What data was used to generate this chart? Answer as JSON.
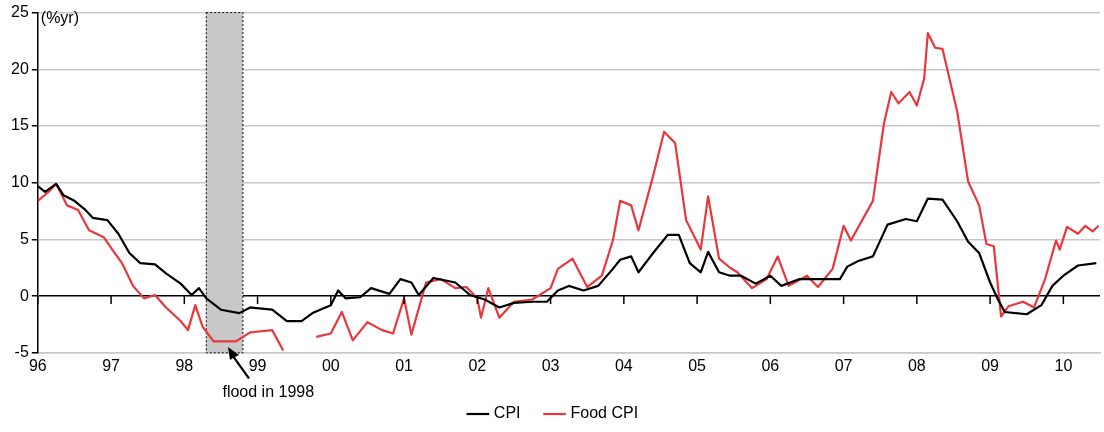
{
  "chart_data": {
    "type": "line",
    "ylabel": "(%yr)",
    "xlim": [
      1996,
      2010.5
    ],
    "xticks": [
      {
        "value": 1996,
        "label": "96"
      },
      {
        "value": 1997,
        "label": "97"
      },
      {
        "value": 1998,
        "label": "98"
      },
      {
        "value": 1999,
        "label": "99"
      },
      {
        "value": 2000,
        "label": "00"
      },
      {
        "value": 2001,
        "label": "01"
      },
      {
        "value": 2002,
        "label": "02"
      },
      {
        "value": 2003,
        "label": "03"
      },
      {
        "value": 2004,
        "label": "04"
      },
      {
        "value": 2005,
        "label": "05"
      },
      {
        "value": 2006,
        "label": "06"
      },
      {
        "value": 2007,
        "label": "07"
      },
      {
        "value": 2008,
        "label": "08"
      },
      {
        "value": 2009,
        "label": "09"
      },
      {
        "value": 2010,
        "label": "10"
      }
    ],
    "ylim": [
      -5,
      25
    ],
    "yticks": [
      -5,
      0,
      5,
      10,
      15,
      20,
      25
    ],
    "grid": "y",
    "legend": "bottom",
    "marker": "none",
    "line_style": "solid",
    "bands": [
      {
        "axis": "x",
        "from": 1998.3,
        "to": 1998.8,
        "color": "#c8c8c8"
      }
    ],
    "annotations": [
      {
        "text": "flood in 1998",
        "x": 1998.6,
        "y": -4
      }
    ],
    "series": [
      {
        "name": "CPI",
        "color": "#000000",
        "x": [
          1996.0,
          1996.1,
          1996.25,
          1996.35,
          1996.5,
          1996.65,
          1996.75,
          1996.95,
          1997.1,
          1997.25,
          1997.4,
          1997.6,
          1997.75,
          1997.95,
          1998.1,
          1998.2,
          1998.3,
          1998.5,
          1998.75,
          1998.9,
          1999.2,
          1999.4,
          1999.6,
          1999.75,
          2000.0,
          2000.1,
          2000.2,
          2000.4,
          2000.55,
          2000.8,
          2000.95,
          2001.1,
          2001.2,
          2001.4,
          2001.7,
          2001.9,
          2002.1,
          2002.3,
          2002.5,
          2002.75,
          2002.95,
          2003.1,
          2003.25,
          2003.45,
          2003.65,
          2003.85,
          2003.95,
          2004.1,
          2004.2,
          2004.4,
          2004.6,
          2004.75,
          2004.9,
          2005.05,
          2005.15,
          2005.3,
          2005.45,
          2005.6,
          2005.8,
          2006.0,
          2006.15,
          2006.4,
          2006.7,
          2006.95,
          2007.05,
          2007.2,
          2007.4,
          2007.6,
          2007.85,
          2008.0,
          2008.15,
          2008.35,
          2008.55,
          2008.7,
          2008.85,
          2009.0,
          2009.1,
          2009.2,
          2009.5,
          2009.7,
          2009.85,
          2010.0,
          2010.2,
          2010.45
        ],
        "values": [
          9.7,
          9.2,
          9.9,
          8.9,
          8.4,
          7.6,
          6.9,
          6.7,
          5.5,
          3.8,
          2.9,
          2.8,
          2.0,
          1.1,
          0.1,
          0.7,
          -0.2,
          -1.2,
          -1.5,
          -1.0,
          -1.2,
          -2.2,
          -2.2,
          -1.5,
          -0.8,
          0.5,
          -0.2,
          -0.1,
          0.7,
          0.2,
          1.5,
          1.2,
          0.1,
          1.6,
          1.2,
          0.1,
          -0.3,
          -1.0,
          -0.6,
          -0.5,
          -0.5,
          0.5,
          0.9,
          0.5,
          0.9,
          2.4,
          3.2,
          3.5,
          2.1,
          3.8,
          5.4,
          5.4,
          2.9,
          2.1,
          3.9,
          2.1,
          1.8,
          1.8,
          1.1,
          1.8,
          0.9,
          1.5,
          1.5,
          1.5,
          2.6,
          3.1,
          3.5,
          6.3,
          6.8,
          6.6,
          8.6,
          8.5,
          6.6,
          4.8,
          3.8,
          1.2,
          -0.2,
          -1.4,
          -1.6,
          -0.8,
          0.9,
          1.8,
          2.7,
          2.9
        ]
      },
      {
        "name": "Food CPI",
        "color": "#e8383d",
        "x": [
          1996.0,
          1996.15,
          1996.25,
          1996.4,
          1996.55,
          1996.7,
          1996.9,
          1997.05,
          1997.15,
          1997.3,
          1997.45,
          1997.6,
          1997.75,
          1997.95,
          1998.05,
          1998.15,
          1998.25,
          1998.4,
          1998.7,
          1998.9,
          1999.2,
          1999.35,
          1999.5,
          1999.8,
          2000.0,
          2000.15,
          2000.3,
          2000.5,
          2000.7,
          2000.85,
          2001.0,
          2001.1,
          2001.3,
          2001.5,
          2001.7,
          2001.85,
          2002.0,
          2002.05,
          2002.15,
          2002.3,
          2002.5,
          2002.75,
          2003.0,
          2003.1,
          2003.3,
          2003.5,
          2003.7,
          2003.85,
          2003.95,
          2004.1,
          2004.2,
          2004.4,
          2004.55,
          2004.7,
          2004.85,
          2005.05,
          2005.15,
          2005.3,
          2005.45,
          2005.55,
          2005.75,
          2005.95,
          2006.1,
          2006.25,
          2006.5,
          2006.65,
          2006.85,
          2007.0,
          2007.1,
          2007.4,
          2007.55,
          2007.65,
          2007.75,
          2007.9,
          2008.0,
          2008.1,
          2008.15,
          2008.25,
          2008.35,
          2008.55,
          2008.7,
          2008.85,
          2008.95,
          2009.05,
          2009.15,
          2009.25,
          2009.45,
          2009.6,
          2009.75,
          2009.9,
          2009.95,
          2010.05,
          2010.2,
          2010.3,
          2010.4,
          2010.48
        ],
        "values": [
          8.4,
          9.2,
          9.9,
          8.0,
          7.6,
          5.8,
          5.2,
          3.8,
          2.9,
          0.9,
          -0.2,
          0.1,
          -1.0,
          -2.2,
          -3.0,
          -0.8,
          -2.7,
          -4.0,
          -4.0,
          -3.2,
          -3.0,
          -4.8,
          null,
          -3.6,
          -3.3,
          -1.4,
          -3.9,
          -2.3,
          -3.0,
          -3.3,
          -0.2,
          -3.4,
          1.2,
          1.5,
          0.7,
          0.8,
          -0.2,
          -1.9,
          0.7,
          -1.9,
          -0.5,
          -0.3,
          0.7,
          2.4,
          3.3,
          0.8,
          1.8,
          4.9,
          8.4,
          8.0,
          5.8,
          10.6,
          14.5,
          13.5,
          6.7,
          4.1,
          8.8,
          3.3,
          2.5,
          2.1,
          0.7,
          1.5,
          3.5,
          0.9,
          1.8,
          0.8,
          2.4,
          6.2,
          4.9,
          8.4,
          15.2,
          18.0,
          17.0,
          18.0,
          16.8,
          19.2,
          23.2,
          21.9,
          21.8,
          16.3,
          10.1,
          8.0,
          4.6,
          4.4,
          -1.8,
          -0.9,
          -0.5,
          -1.0,
          1.5,
          4.9,
          4.1,
          6.1,
          5.5,
          6.2,
          5.7,
          6.2
        ]
      }
    ]
  }
}
